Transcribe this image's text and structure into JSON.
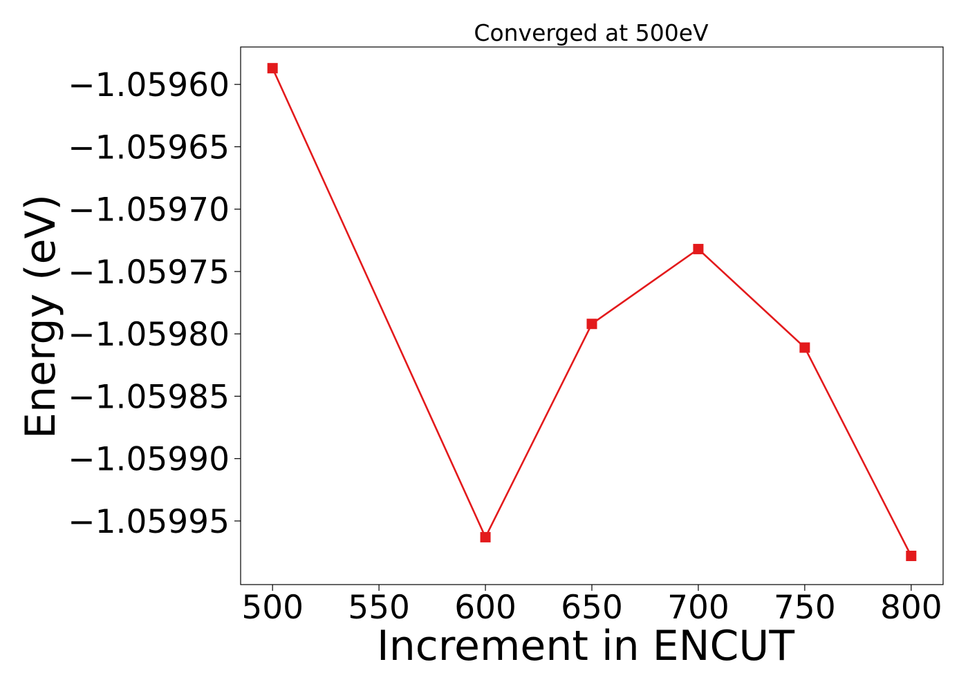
{
  "chart_data": {
    "type": "line",
    "title": "Converged at 500eV",
    "xlabel": "Increment in ENCUT",
    "ylabel": "Energy (eV)",
    "x": [
      500,
      600,
      650,
      700,
      750,
      800
    ],
    "series": [
      {
        "values": [
          -1.059587,
          -1.059963,
          -1.059792,
          -1.059732,
          -1.059811,
          -1.059978
        ],
        "color": "#e31a1c",
        "marker": "square"
      }
    ],
    "xlim": [
      485,
      815
    ],
    "ylim": [
      -1.060001,
      -1.05957
    ],
    "xticks": [
      500,
      550,
      600,
      650,
      700,
      750,
      800
    ],
    "xtick_labels": [
      "500",
      "550",
      "600",
      "650",
      "700",
      "750",
      "800"
    ],
    "yticks": [
      -1.0596,
      -1.05965,
      -1.0597,
      -1.05975,
      -1.0598,
      -1.05985,
      -1.0599,
      -1.05995
    ],
    "ytick_labels": [
      "−1.05960",
      "−1.05965",
      "−1.05970",
      "−1.05975",
      "−1.05980",
      "−1.05985",
      "−1.05990",
      "−1.05995"
    ],
    "grid": false,
    "legend": "none"
  }
}
